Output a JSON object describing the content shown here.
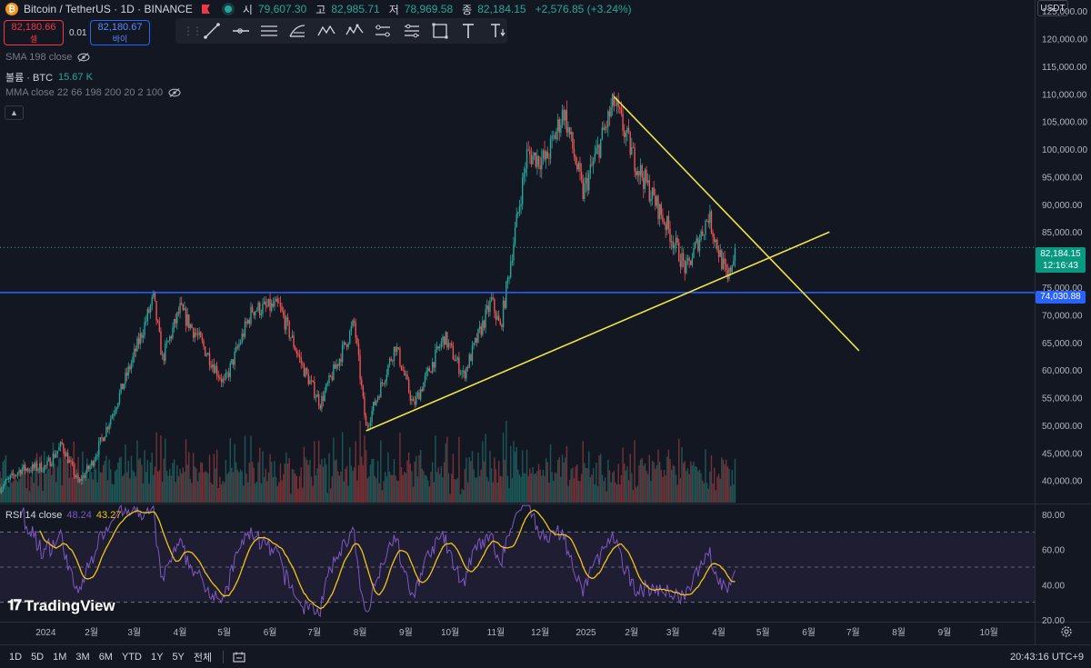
{
  "header": {
    "symbol_title": "Bitcoin / TetherUS · 1D · BINANCE",
    "open_label": "시",
    "open": "79,607.30",
    "high_label": "고",
    "high": "82,985.71",
    "low_label": "저",
    "low": "78,969.58",
    "close_label": "종",
    "close": "82,184.15",
    "change": "+2,576.85 (+3.24%)"
  },
  "trade": {
    "sell_price": "82,180.66",
    "sell_label": "셀",
    "spread": "0.01",
    "buy_price": "82,180.67",
    "buy_label": "바이"
  },
  "indicators": {
    "sma": "SMA 198 close",
    "volume_label": "볼륨 · BTC",
    "volume_value": "15.67 K",
    "mma": "MMA close 22 66 198 200 20 2 100",
    "rsi_label": "RSI 14 close",
    "rsi_value": "48.24",
    "rsi_ma_value": "43.27"
  },
  "branding": {
    "logo_text": "TradingView"
  },
  "price_axis": {
    "currency": "USDT",
    "labels": [
      "125,000.00",
      "120,000.00",
      "115,000.00",
      "110,000.00",
      "105,000.00",
      "100,000.00",
      "95,000.00",
      "90,000.00",
      "85,000.00",
      "75,000.00",
      "70,000.00",
      "65,000.00",
      "60,000.00",
      "55,000.00",
      "50,000.00",
      "45,000.00",
      "40,000.00"
    ],
    "last_price": "82,184.15",
    "countdown": "12:16:43",
    "hline_price": "74,030.88"
  },
  "rsi_axis": {
    "labels": [
      "80.00",
      "60.00",
      "40.00",
      "20.00"
    ]
  },
  "time_axis": {
    "labels": [
      "2024",
      "2월",
      "3월",
      "4월",
      "5월",
      "6월",
      "7월",
      "8월",
      "9월",
      "10월",
      "11월",
      "12월",
      "2025",
      "2월",
      "3월",
      "4월",
      "5월",
      "6월",
      "7월",
      "8월",
      "9월",
      "10월"
    ]
  },
  "bottom_bar": {
    "timeframes": [
      "1D",
      "5D",
      "1M",
      "3M",
      "6M",
      "YTD",
      "1Y",
      "5Y",
      "전체"
    ],
    "clock": "20:43:16 UTC+9"
  },
  "colors": {
    "background": "#131722",
    "up": "#26a69a",
    "down": "#ef5350",
    "trendline": "#f0e442",
    "hline": "#2962ff",
    "rsi": "#7e57c2",
    "rsi_ma": "#f0c419"
  },
  "chart_data": {
    "type": "candlestick",
    "symbol": "Bitcoin / TetherUS",
    "interval": "1D",
    "exchange": "BINANCE",
    "x_range": [
      "2023-12-01",
      "2025-11-01"
    ],
    "y_range": [
      36000,
      127000
    ],
    "last_close": 82184.15,
    "price_path": [
      [
        "2023-12-01",
        38700
      ],
      [
        "2023-12-15",
        42000
      ],
      [
        "2024-01-01",
        42500
      ],
      [
        "2024-01-12",
        46500
      ],
      [
        "2024-01-23",
        39500
      ],
      [
        "2024-02-01",
        43000
      ],
      [
        "2024-02-15",
        52000
      ],
      [
        "2024-02-29",
        62000
      ],
      [
        "2024-03-14",
        73000
      ],
      [
        "2024-03-20",
        62000
      ],
      [
        "2024-04-01",
        71000
      ],
      [
        "2024-04-13",
        66000
      ],
      [
        "2024-05-01",
        57500
      ],
      [
        "2024-05-20",
        71000
      ],
      [
        "2024-06-07",
        71500
      ],
      [
        "2024-06-24",
        60000
      ],
      [
        "2024-07-05",
        54000
      ],
      [
        "2024-07-28",
        68500
      ],
      [
        "2024-08-05",
        49500
      ],
      [
        "2024-08-25",
        64500
      ],
      [
        "2024-09-06",
        53500
      ],
      [
        "2024-09-27",
        66000
      ],
      [
        "2024-10-10",
        59000
      ],
      [
        "2024-10-29",
        72500
      ],
      [
        "2024-11-04",
        67500
      ],
      [
        "2024-11-22",
        99000
      ],
      [
        "2024-12-05",
        98000
      ],
      [
        "2024-12-17",
        107000
      ],
      [
        "2024-12-30",
        92000
      ],
      [
        "2025-01-20",
        108500
      ],
      [
        "2025-02-03",
        98000
      ],
      [
        "2025-02-25",
        86000
      ],
      [
        "2025-03-10",
        78000
      ],
      [
        "2025-03-25",
        88000
      ],
      [
        "2025-04-07",
        76000
      ],
      [
        "2025-04-12",
        82184.15
      ]
    ],
    "trendlines": [
      {
        "from": [
          "2024-08-05",
          49000
        ],
        "to": [
          "2025-06-15",
          85000
        ]
      },
      {
        "from": [
          "2025-01-20",
          109500
        ],
        "to": [
          "2025-07-05",
          63500
        ]
      }
    ],
    "horizontal_lines": [
      74030.88
    ],
    "volume": {
      "label": "볼륨 · BTC",
      "last": "15.67 K"
    },
    "rsi": {
      "period": 14,
      "y_range": [
        20,
        80
      ],
      "upper_band": 70,
      "middle": 50,
      "lower_band": 30,
      "last": 48.24,
      "ma_last": 43.27
    }
  }
}
